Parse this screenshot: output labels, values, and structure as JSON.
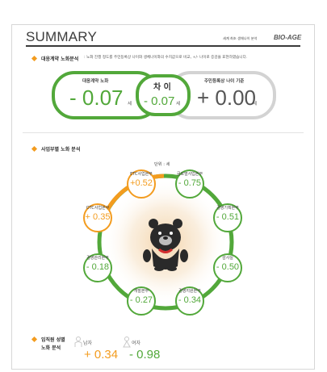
{
  "header": {
    "title": "SUMMARY",
    "subtitle": "세계 최초 생체나이 분석",
    "brand": "BIO-AGE"
  },
  "overview": {
    "section_title": "대응계약 노화분석",
    "description": ": 노화 진행 정도를 주민등록상 나이와 생체나이와의 수치값으로 비교, +/- 나이로 증감을 표현하였습니다.",
    "left_label": "대응계약 노화",
    "left_value": "- 0.07",
    "left_unit": "세",
    "middle_label": "차 이",
    "middle_value": "- 0.07",
    "middle_unit": "세",
    "right_label": "주민등록상 나이 기준",
    "right_value": "+ 0.00",
    "right_unit": "세"
  },
  "departments": {
    "section_title": "사업부별 노화 분석",
    "unit_label": "단위 : 세",
    "items": [
      {
        "name": "ETC사업본부",
        "value": "+0.52",
        "tone": "orange"
      },
      {
        "name": "글로벌사업본부",
        "value": "- 0.75",
        "tone": "green"
      },
      {
        "name": "경영기획본부",
        "value": "- 0.51",
        "tone": "green"
      },
      {
        "name": "감사실",
        "value": "- 0.50",
        "tone": "green"
      },
      {
        "name": "경영지원본부",
        "value": "- 0.34",
        "tone": "green"
      },
      {
        "name": "개발본부",
        "value": "- 0.27",
        "tone": "green"
      },
      {
        "name": "경영관리본부",
        "value": "- 0.18",
        "tone": "green"
      },
      {
        "name": "OTC사업본부",
        "value": "+ 0.35",
        "tone": "orange"
      }
    ],
    "colors": {
      "negative": "#52a83a",
      "positive": "#f39c1f",
      "ring": "#52a83a"
    }
  },
  "gender": {
    "section_title_line1": "임직원 성별",
    "section_title_line2": "노화 분석",
    "male_label": "남자",
    "male_value": "+ 0.34",
    "female_label": "여자",
    "female_value": "- 0.98"
  },
  "mascot": {
    "icon": "bear-mascot-icon"
  }
}
